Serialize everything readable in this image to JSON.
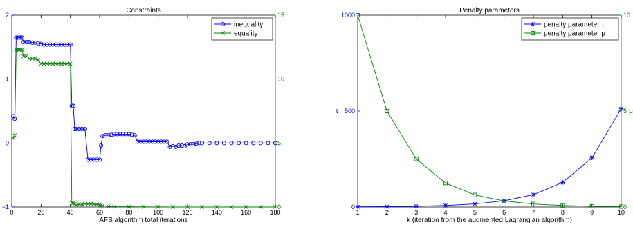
{
  "chart_data": [
    {
      "type": "line",
      "title": "Constraints",
      "xlabel": "AFS algorithm total iterations",
      "ylabel": "",
      "ylabel_right": "",
      "xlim": [
        0,
        180
      ],
      "ylim": [
        -1,
        2
      ],
      "ylim_right": [
        0,
        15
      ],
      "x_ticks": [
        0,
        20,
        40,
        60,
        80,
        100,
        120,
        140,
        160,
        180
      ],
      "y_ticks": [
        -1,
        0,
        1,
        2
      ],
      "y_ticks_right": [
        0,
        5,
        10,
        15
      ],
      "left_axis_color": "#0000ff",
      "right_axis_color": "#008000",
      "grid": false,
      "legend_position": "top-right",
      "series": [
        {
          "name": "inequality",
          "axis": "left",
          "color": "#0000ff",
          "marker": "circle",
          "values": [
            [
              1,
              0.42
            ],
            [
              2,
              0.38
            ],
            [
              3,
              1.65
            ],
            [
              4,
              1.65
            ],
            [
              5,
              1.65
            ],
            [
              6,
              1.65
            ],
            [
              7,
              1.65
            ],
            [
              8,
              1.58
            ],
            [
              10,
              1.58
            ],
            [
              12,
              1.58
            ],
            [
              14,
              1.57
            ],
            [
              16,
              1.57
            ],
            [
              18,
              1.56
            ],
            [
              20,
              1.55
            ],
            [
              22,
              1.54
            ],
            [
              24,
              1.54
            ],
            [
              26,
              1.54
            ],
            [
              28,
              1.54
            ],
            [
              30,
              1.54
            ],
            [
              32,
              1.54
            ],
            [
              34,
              1.54
            ],
            [
              36,
              1.54
            ],
            [
              38,
              1.54
            ],
            [
              40,
              1.54
            ],
            [
              41,
              0.58
            ],
            [
              42,
              0.58
            ],
            [
              43,
              0.22
            ],
            [
              44,
              0.22
            ],
            [
              46,
              0.22
            ],
            [
              48,
              0.22
            ],
            [
              50,
              0.22
            ],
            [
              52,
              -0.26
            ],
            [
              54,
              -0.26
            ],
            [
              56,
              -0.26
            ],
            [
              58,
              -0.26
            ],
            [
              60,
              -0.26
            ],
            [
              61,
              -0.04
            ],
            [
              62,
              0.11
            ],
            [
              64,
              0.12
            ],
            [
              66,
              0.12
            ],
            [
              68,
              0.13
            ],
            [
              70,
              0.14
            ],
            [
              72,
              0.14
            ],
            [
              74,
              0.14
            ],
            [
              76,
              0.14
            ],
            [
              78,
              0.14
            ],
            [
              80,
              0.14
            ],
            [
              82,
              0.13
            ],
            [
              84,
              0.12
            ],
            [
              86,
              0.02
            ],
            [
              88,
              0.02
            ],
            [
              90,
              0.02
            ],
            [
              92,
              0.02
            ],
            [
              94,
              0.02
            ],
            [
              96,
              0.02
            ],
            [
              98,
              0.02
            ],
            [
              100,
              0.02
            ],
            [
              102,
              0.02
            ],
            [
              104,
              0.02
            ],
            [
              106,
              0.02
            ],
            [
              108,
              -0.06
            ],
            [
              110,
              -0.05
            ],
            [
              112,
              -0.06
            ],
            [
              114,
              -0.04
            ],
            [
              116,
              -0.04
            ],
            [
              118,
              -0.05
            ],
            [
              120,
              -0.02
            ],
            [
              122,
              -0.02
            ],
            [
              124,
              -0.02
            ],
            [
              126,
              -0.01
            ],
            [
              128,
              0.0
            ],
            [
              130,
              0.0
            ],
            [
              135,
              0.0
            ],
            [
              140,
              0.0
            ],
            [
              145,
              0.0
            ],
            [
              150,
              0.0
            ],
            [
              155,
              0.0
            ],
            [
              160,
              0.0
            ],
            [
              165,
              0.0
            ],
            [
              170,
              0.0
            ],
            [
              175,
              0.0
            ],
            [
              180,
              0.0
            ]
          ]
        },
        {
          "name": "equality",
          "axis": "right",
          "color": "#008000",
          "marker": "x",
          "values": [
            [
              1,
              5.4
            ],
            [
              2,
              5.6
            ],
            [
              3,
              12.3
            ],
            [
              4,
              12.3
            ],
            [
              5,
              12.3
            ],
            [
              6,
              12.3
            ],
            [
              7,
              12.3
            ],
            [
              8,
              11.8
            ],
            [
              10,
              11.8
            ],
            [
              12,
              11.6
            ],
            [
              14,
              11.6
            ],
            [
              16,
              11.6
            ],
            [
              18,
              11.5
            ],
            [
              20,
              11.2
            ],
            [
              22,
              11.2
            ],
            [
              24,
              11.2
            ],
            [
              26,
              11.2
            ],
            [
              28,
              11.2
            ],
            [
              30,
              11.2
            ],
            [
              32,
              11.2
            ],
            [
              34,
              11.2
            ],
            [
              36,
              11.2
            ],
            [
              38,
              11.2
            ],
            [
              40,
              11.2
            ],
            [
              41,
              0.3
            ],
            [
              42,
              0.3
            ],
            [
              43,
              0.25
            ],
            [
              44,
              0.15
            ],
            [
              46,
              0.2
            ],
            [
              48,
              0.2
            ],
            [
              50,
              0.25
            ],
            [
              52,
              0.25
            ],
            [
              54,
              0.25
            ],
            [
              56,
              0.22
            ],
            [
              58,
              0.2
            ],
            [
              60,
              0.15
            ],
            [
              62,
              0.1
            ],
            [
              66,
              0.05
            ],
            [
              70,
              0.03
            ],
            [
              80,
              0.02
            ],
            [
              90,
              0.01
            ],
            [
              100,
              0.01
            ],
            [
              110,
              0.0
            ],
            [
              120,
              0.0
            ],
            [
              130,
              0.0
            ],
            [
              140,
              0.0
            ],
            [
              150,
              0.0
            ],
            [
              160,
              0.0
            ],
            [
              170,
              0.0
            ],
            [
              180,
              0.0
            ]
          ]
        }
      ]
    },
    {
      "type": "line",
      "title": "Penalty parameters",
      "xlabel": "k  (iteration from the augmented Lagrangian algorithm)",
      "ylabel": "τ",
      "ylabel_right": "μ",
      "xlim": [
        1,
        10
      ],
      "ylim": [
        0,
        1000
      ],
      "ylim_right": [
        0,
        10
      ],
      "x_ticks": [
        1,
        2,
        3,
        4,
        5,
        6,
        7,
        8,
        9,
        10
      ],
      "y_ticks": [
        0,
        500,
        1000
      ],
      "y_ticks_right": [
        0,
        5,
        10
      ],
      "left_axis_color": "#0000ff",
      "right_axis_color": "#008000",
      "grid": false,
      "legend_position": "top-right",
      "series": [
        {
          "name": "penalty parameter τ",
          "axis": "left",
          "color": "#0000ff",
          "marker": "asterisk",
          "values": [
            [
              1,
              1
            ],
            [
              2,
              2
            ],
            [
              3,
              4
            ],
            [
              4,
              8
            ],
            [
              5,
              16
            ],
            [
              6,
              32
            ],
            [
              7,
              64
            ],
            [
              8,
              128
            ],
            [
              9,
              256
            ],
            [
              10,
              512
            ]
          ]
        },
        {
          "name": "penalty parameter μ",
          "axis": "right",
          "color": "#008000",
          "marker": "square",
          "values": [
            [
              1,
              10
            ],
            [
              2,
              5
            ],
            [
              3,
              2.5
            ],
            [
              4,
              1.25
            ],
            [
              5,
              0.625
            ],
            [
              6,
              0.3125
            ],
            [
              7,
              0.156
            ],
            [
              8,
              0.078
            ],
            [
              9,
              0.039
            ],
            [
              10,
              0.0195
            ]
          ]
        }
      ]
    }
  ]
}
